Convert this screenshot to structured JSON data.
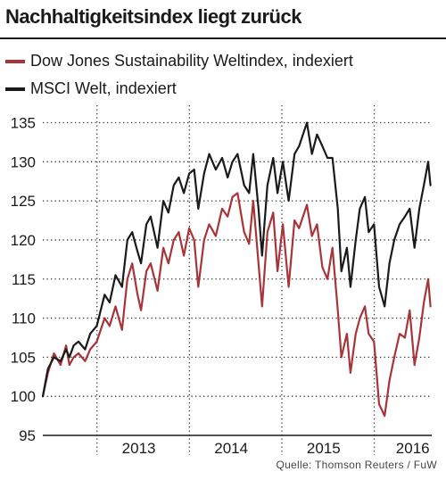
{
  "header": {
    "title": "Nachhaltigkeitsindex liegt zurück",
    "source": "Quelle: Thomson Reuters / FuW"
  },
  "chart_data": {
    "type": "line",
    "title": "Nachhaltigkeitsindex liegt zurück",
    "xlabel": "",
    "ylabel": "",
    "ylim": [
      95,
      137
    ],
    "xlim": [
      "2012-06-01",
      "2016-08-15"
    ],
    "yticks": [
      95,
      100,
      105,
      110,
      115,
      120,
      125,
      130,
      135
    ],
    "xticks": [
      {
        "label": "2013",
        "at": "2013-06-15"
      },
      {
        "label": "2014",
        "at": "2014-06-15"
      },
      {
        "label": "2015",
        "at": "2015-06-15"
      },
      {
        "label": "2016",
        "at": "2016-06-01"
      }
    ],
    "x_gridlines": [
      "2013-01-01",
      "2014-01-01",
      "2015-01-01",
      "2016-01-01"
    ],
    "grid": {
      "y": true,
      "x": true,
      "style": "dotted"
    },
    "legend_position": "top-left",
    "series": [
      {
        "name": "Dow Jones Sustainability Weltindex, indexiert",
        "color": "#a8343a",
        "x": [
          "2012-06-01",
          "2012-06-21",
          "2012-07-15",
          "2012-08-10",
          "2012-09-01",
          "2012-09-14",
          "2012-10-01",
          "2012-10-20",
          "2012-11-15",
          "2012-12-05",
          "2012-12-31",
          "2013-01-31",
          "2013-02-20",
          "2013-03-15",
          "2013-04-10",
          "2013-05-01",
          "2013-05-20",
          "2013-06-10",
          "2013-06-24",
          "2013-07-15",
          "2013-08-01",
          "2013-08-28",
          "2013-09-20",
          "2013-10-10",
          "2013-10-31",
          "2013-11-20",
          "2013-12-10",
          "2013-12-31",
          "2014-01-20",
          "2014-02-05",
          "2014-02-28",
          "2014-03-20",
          "2014-04-15",
          "2014-05-10",
          "2014-06-01",
          "2014-06-20",
          "2014-07-10",
          "2014-08-05",
          "2014-08-25",
          "2014-09-10",
          "2014-10-01",
          "2014-10-15",
          "2014-11-05",
          "2014-11-28",
          "2014-12-15",
          "2015-01-05",
          "2015-01-28",
          "2015-02-20",
          "2015-03-10",
          "2015-04-10",
          "2015-04-30",
          "2015-05-20",
          "2015-06-10",
          "2015-06-30",
          "2015-07-20",
          "2015-08-10",
          "2015-08-24",
          "2015-09-15",
          "2015-09-29",
          "2015-10-20",
          "2015-11-05",
          "2015-11-25",
          "2015-12-10",
          "2015-12-31",
          "2016-01-20",
          "2016-02-11",
          "2016-03-01",
          "2016-03-20",
          "2016-04-10",
          "2016-05-01",
          "2016-05-20",
          "2016-06-08",
          "2016-06-27",
          "2016-07-15",
          "2016-08-01",
          "2016-08-10"
        ],
        "values": [
          100,
          103,
          105.5,
          104,
          106.5,
          104,
          105,
          105.5,
          104.5,
          106,
          107,
          110,
          109,
          111.5,
          108.5,
          115,
          117,
          113,
          111,
          116,
          117,
          113.5,
          119,
          117,
          120,
          121,
          118,
          121.5,
          120,
          114,
          120,
          122,
          120.5,
          124,
          123,
          125.5,
          126,
          121,
          119.5,
          125,
          117,
          111.5,
          121,
          123.5,
          116,
          122,
          114,
          122.5,
          121.5,
          124.5,
          120.5,
          122,
          116.5,
          115,
          119,
          111,
          105,
          108,
          103,
          108,
          110,
          111.5,
          108,
          107,
          99,
          97.5,
          102,
          105,
          108,
          107.5,
          111,
          104,
          107.5,
          112,
          115,
          111.5
        ]
      },
      {
        "name": "MSCI Welt, indexiert",
        "color": "#1a1a1a",
        "x": [
          "2012-06-01",
          "2012-06-21",
          "2012-07-15",
          "2012-08-10",
          "2012-09-01",
          "2012-09-14",
          "2012-10-01",
          "2012-10-20",
          "2012-11-15",
          "2012-12-05",
          "2012-12-31",
          "2013-01-31",
          "2013-02-20",
          "2013-03-15",
          "2013-04-10",
          "2013-05-01",
          "2013-05-20",
          "2013-06-10",
          "2013-06-24",
          "2013-07-15",
          "2013-08-01",
          "2013-08-28",
          "2013-09-20",
          "2013-10-10",
          "2013-10-31",
          "2013-11-20",
          "2013-12-10",
          "2013-12-31",
          "2014-01-20",
          "2014-02-05",
          "2014-02-28",
          "2014-03-20",
          "2014-04-15",
          "2014-05-10",
          "2014-06-01",
          "2014-06-20",
          "2014-07-10",
          "2014-08-05",
          "2014-08-25",
          "2014-09-10",
          "2014-10-01",
          "2014-10-15",
          "2014-11-05",
          "2014-11-28",
          "2014-12-15",
          "2015-01-05",
          "2015-01-28",
          "2015-02-20",
          "2015-03-10",
          "2015-04-10",
          "2015-04-30",
          "2015-05-20",
          "2015-06-10",
          "2015-06-30",
          "2015-07-20",
          "2015-08-10",
          "2015-08-24",
          "2015-09-15",
          "2015-09-29",
          "2015-10-20",
          "2015-11-05",
          "2015-11-25",
          "2015-12-10",
          "2015-12-31",
          "2016-01-20",
          "2016-02-11",
          "2016-03-01",
          "2016-03-20",
          "2016-04-10",
          "2016-05-01",
          "2016-05-20",
          "2016-06-08",
          "2016-06-27",
          "2016-07-15",
          "2016-08-01",
          "2016-08-10"
        ],
        "values": [
          100,
          103.5,
          105,
          104.5,
          106,
          105,
          106.5,
          107,
          106,
          108,
          109,
          113,
          112,
          115.5,
          114,
          120,
          121,
          118.5,
          117,
          122,
          123,
          119,
          125,
          123.5,
          127,
          128,
          126,
          128.5,
          129,
          124,
          128.5,
          131,
          129,
          130.5,
          128,
          130,
          131,
          127,
          126,
          131,
          124,
          118,
          127,
          130.5,
          126,
          130,
          125,
          131,
          132,
          135,
          131,
          133.5,
          132,
          130.5,
          130.5,
          124,
          116,
          119,
          114,
          120,
          124,
          125.5,
          121,
          122,
          114,
          111.5,
          117,
          120,
          122,
          123,
          124,
          119,
          124,
          127,
          130,
          127
        ]
      }
    ]
  }
}
